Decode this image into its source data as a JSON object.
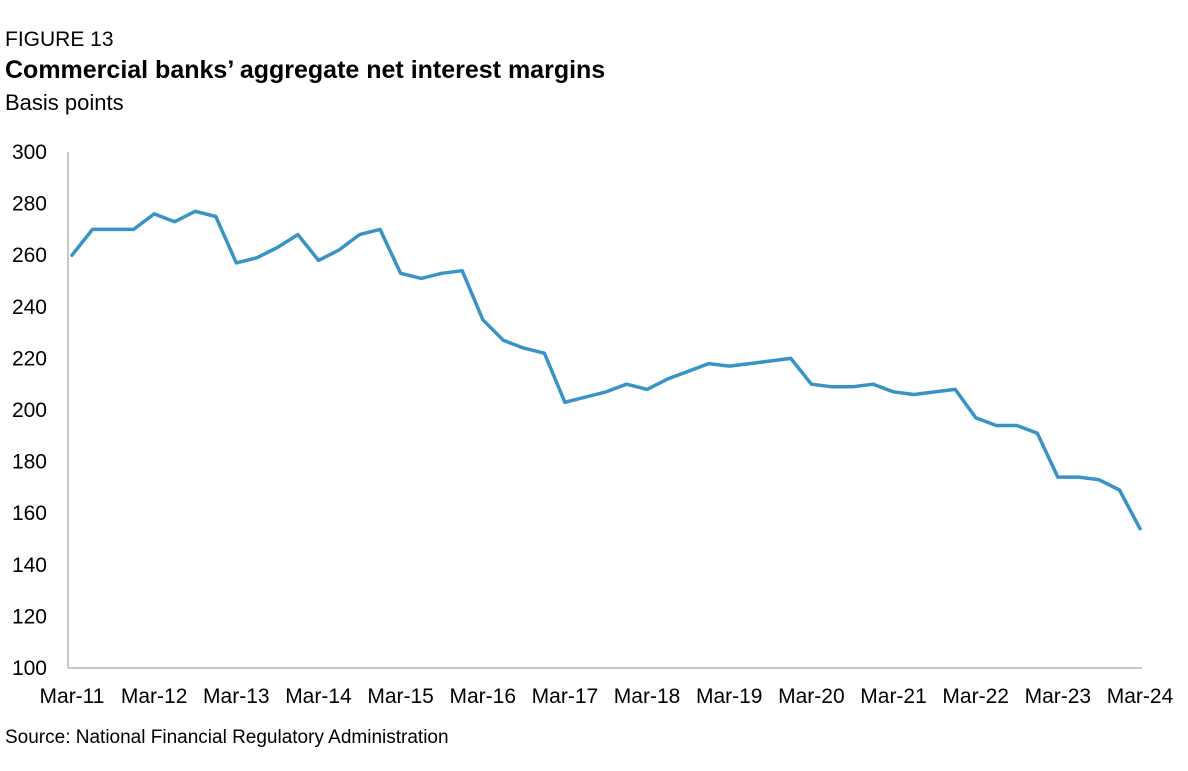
{
  "figure_label": "FIGURE 13",
  "source": "Source: National Financial Regulatory Administration",
  "chart_data": {
    "type": "line",
    "title": "Commercial banks’ aggregate net interest margins",
    "subtitle": "Basis points",
    "xlabel": "",
    "ylabel": "",
    "ylim": [
      100,
      300
    ],
    "yticks": [
      100,
      120,
      140,
      160,
      180,
      200,
      220,
      240,
      260,
      280,
      300
    ],
    "x_tick_labels": [
      "Mar-11",
      "Mar-12",
      "Mar-13",
      "Mar-14",
      "Mar-15",
      "Mar-16",
      "Mar-17",
      "Mar-18",
      "Mar-19",
      "Mar-20",
      "Mar-21",
      "Mar-22",
      "Mar-23",
      "Mar-24"
    ],
    "grid": false,
    "legend": "none",
    "line_color": "#3A93C7",
    "axis_color": "#C8C8C8",
    "x": [
      "Mar-11",
      "Jun-11",
      "Sep-11",
      "Dec-11",
      "Mar-12",
      "Jun-12",
      "Sep-12",
      "Dec-12",
      "Mar-13",
      "Jun-13",
      "Sep-13",
      "Dec-13",
      "Mar-14",
      "Jun-14",
      "Sep-14",
      "Dec-14",
      "Mar-15",
      "Jun-15",
      "Sep-15",
      "Dec-15",
      "Mar-16",
      "Jun-16",
      "Sep-16",
      "Dec-16",
      "Mar-17",
      "Jun-17",
      "Sep-17",
      "Dec-17",
      "Mar-18",
      "Jun-18",
      "Sep-18",
      "Dec-18",
      "Mar-19",
      "Jun-19",
      "Sep-19",
      "Dec-19",
      "Mar-20",
      "Jun-20",
      "Sep-20",
      "Dec-20",
      "Mar-21",
      "Jun-21",
      "Sep-21",
      "Dec-21",
      "Mar-22",
      "Jun-22",
      "Sep-22",
      "Dec-22",
      "Mar-23",
      "Jun-23",
      "Sep-23",
      "Dec-23",
      "Mar-24"
    ],
    "series": [
      {
        "values": [
          260,
          270,
          270,
          270,
          276,
          273,
          277,
          275,
          257,
          259,
          263,
          268,
          258,
          262,
          268,
          270,
          253,
          251,
          253,
          254,
          235,
          227,
          224,
          222,
          203,
          205,
          207,
          210,
          208,
          212,
          215,
          218,
          217,
          218,
          219,
          220,
          210,
          209,
          209,
          210,
          207,
          206,
          207,
          208,
          197,
          194,
          194,
          191,
          174,
          174,
          173,
          169,
          154
        ]
      }
    ]
  }
}
